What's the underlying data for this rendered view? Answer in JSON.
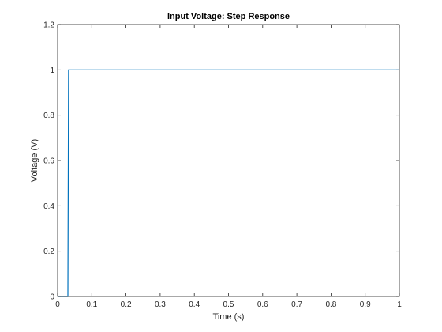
{
  "chart_data": {
    "type": "line",
    "title": "Input Voltage: Step Response",
    "xlabel": "Time (s)",
    "ylabel": "Voltage (V)",
    "xlim": [
      0,
      1
    ],
    "ylim": [
      0,
      1.2
    ],
    "x_ticks": [
      0,
      0.1,
      0.2,
      0.3,
      0.4,
      0.5,
      0.6,
      0.7,
      0.8,
      0.9,
      1
    ],
    "x_tick_labels": [
      "0",
      "0.1",
      "0.2",
      "0.3",
      "0.4",
      "0.5",
      "0.6",
      "0.7",
      "0.8",
      "0.9",
      "1"
    ],
    "y_ticks": [
      0,
      0.2,
      0.4,
      0.6,
      0.8,
      1,
      1.2
    ],
    "y_tick_labels": [
      "0",
      "0.2",
      "0.4",
      "0.6",
      "0.8",
      "1",
      "1.2"
    ],
    "grid": false,
    "series": [
      {
        "color": "#0072BD",
        "x": [
          0,
          0.03,
          0.032,
          1
        ],
        "y": [
          0,
          0,
          1,
          1
        ]
      }
    ]
  }
}
